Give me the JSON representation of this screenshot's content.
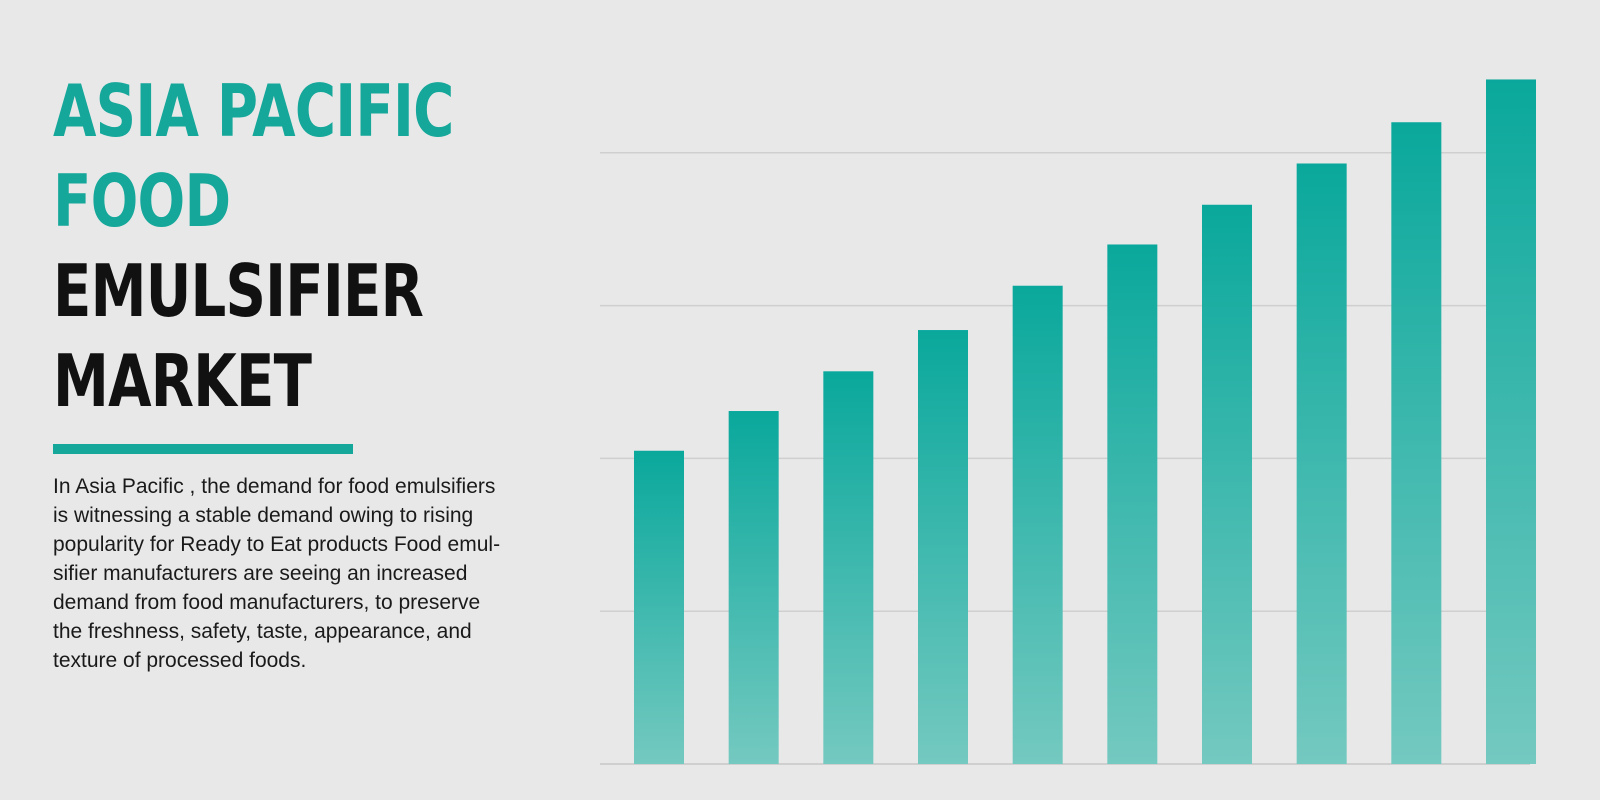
{
  "title": {
    "line1": "ASIA PACIFIC",
    "line2": "FOOD",
    "line3": "EMULSIFIER",
    "line4": "MARKET"
  },
  "description": "In Asia Pacific , the demand for food emulsifiers\nis witnessing a stable demand owing to rising\npopularity for Ready to Eat products Food emul-\nsifier manufacturers are seeing an increased\ndemand from food manufacturers, to preserve\nthe freshness, safety, taste, appearance, and\ntexture of processed foods.",
  "colors": {
    "accent": "#14a79a",
    "bar_top": "#0aa89c",
    "bar_bottom": "#74c9c0",
    "grid": "#cfcfcf",
    "background": "#e8e8e8"
  },
  "chart_data": {
    "type": "bar",
    "values": [
      2.05,
      2.31,
      2.57,
      2.84,
      3.13,
      3.4,
      3.66,
      3.93,
      4.2,
      4.48
    ],
    "ylim": [
      0,
      5
    ],
    "grid": true,
    "axis_labels_shown": false
  }
}
